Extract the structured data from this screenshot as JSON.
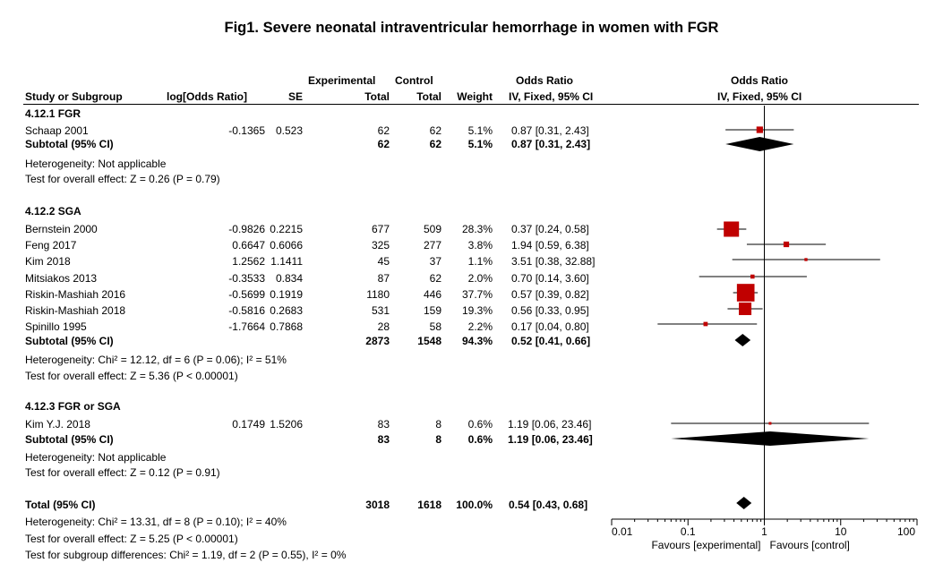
{
  "title": "Fig1. Severe neonatal intraventricular hemorrhage in women with FGR",
  "header": {
    "col_study": "Study or Subgroup",
    "col_log": "log[Odds Ratio]",
    "col_se": "SE",
    "col_exp_top": "Experimental",
    "col_exp": "Total",
    "col_ctrl_top": "Control",
    "col_ctrl": "Total",
    "col_weight": "Weight",
    "col_or_top": "Odds Ratio",
    "col_or": "IV, Fixed, 95% CI",
    "plot_top": "Odds Ratio",
    "plot_sub": "IV, Fixed, 95% CI"
  },
  "groups": [
    {
      "name": "4.12.1 FGR",
      "studies": [
        {
          "study": "Schaap 2001",
          "log_or": "-0.1365",
          "se": "0.523",
          "exp": "62",
          "ctrl": "62",
          "weight": "5.1%",
          "ci_text": "0.87 [0.31, 2.43]"
        }
      ],
      "subtotal": {
        "label": "Subtotal (95% CI)",
        "exp": "62",
        "ctrl": "62",
        "weight": "5.1%",
        "ci_text": "0.87 [0.31, 2.43]"
      },
      "heterogeneity": "Heterogeneity: Not applicable",
      "overall": "Test for overall effect: Z = 0.26 (P = 0.79)"
    },
    {
      "name": "4.12.2 SGA",
      "studies": [
        {
          "study": "Bernstein 2000",
          "log_or": "-0.9826",
          "se": "0.2215",
          "exp": "677",
          "ctrl": "509",
          "weight": "28.3%",
          "ci_text": "0.37 [0.24, 0.58]"
        },
        {
          "study": "Feng 2017",
          "log_or": "0.6647",
          "se": "0.6066",
          "exp": "325",
          "ctrl": "277",
          "weight": "3.8%",
          "ci_text": "1.94 [0.59, 6.38]"
        },
        {
          "study": "Kim 2018",
          "log_or": "1.2562",
          "se": "1.1411",
          "exp": "45",
          "ctrl": "37",
          "weight": "1.1%",
          "ci_text": "3.51 [0.38, 32.88]"
        },
        {
          "study": "Mitsiakos 2013",
          "log_or": "-0.3533",
          "se": "0.834",
          "exp": "87",
          "ctrl": "62",
          "weight": "2.0%",
          "ci_text": "0.70 [0.14, 3.60]"
        },
        {
          "study": "Riskin-Mashiah 2016",
          "log_or": "-0.5699",
          "se": "0.1919",
          "exp": "1180",
          "ctrl": "446",
          "weight": "37.7%",
          "ci_text": "0.57 [0.39, 0.82]"
        },
        {
          "study": "Riskin-Mashiah 2018",
          "log_or": "-0.5816",
          "se": "0.2683",
          "exp": "531",
          "ctrl": "159",
          "weight": "19.3%",
          "ci_text": "0.56 [0.33, 0.95]"
        },
        {
          "study": "Spinillo 1995",
          "log_or": "-1.7664",
          "se": "0.7868",
          "exp": "28",
          "ctrl": "58",
          "weight": "2.2%",
          "ci_text": "0.17 [0.04, 0.80]"
        }
      ],
      "subtotal": {
        "label": "Subtotal (95% CI)",
        "exp": "2873",
        "ctrl": "1548",
        "weight": "94.3%",
        "ci_text": "0.52 [0.41, 0.66]"
      },
      "heterogeneity": "Heterogeneity: Chi² = 12.12, df = 6 (P = 0.06); I² = 51%",
      "overall": "Test for overall effect: Z = 5.36 (P < 0.00001)"
    },
    {
      "name": "4.12.3 FGR or SGA",
      "studies": [
        {
          "study": "Kim Y.J. 2018",
          "log_or": "0.1749",
          "se": "1.5206",
          "exp": "83",
          "ctrl": "8",
          "weight": "0.6%",
          "ci_text": "1.19 [0.06, 23.46]"
        }
      ],
      "subtotal": {
        "label": "Subtotal (95% CI)",
        "exp": "83",
        "ctrl": "8",
        "weight": "0.6%",
        "ci_text": "1.19 [0.06, 23.46]"
      },
      "heterogeneity": "Heterogeneity: Not applicable",
      "overall": "Test for overall effect: Z = 0.12 (P = 0.91)"
    }
  ],
  "total": {
    "label": "Total (95% CI)",
    "exp": "3018",
    "ctrl": "1618",
    "weight": "100.0%",
    "ci_text": "0.54 [0.43, 0.68]",
    "heterogeneity": "Heterogeneity: Chi² = 13.31, df = 8 (P = 0.10); I² = 40%",
    "overall": "Test for overall effect: Z = 5.25 (P < 0.00001)",
    "subgroup": "Test for subgroup differences: Chi² = 1.19, df = 2 (P = 0.55), I² = 0%"
  },
  "axis_labels": {
    "favours_left": "Favours [experimental]",
    "favours_right": "Favours [control]"
  },
  "colors": {
    "square": "#c00000",
    "diamond": "#000000",
    "line": "#000000"
  },
  "chart_data": {
    "type": "forest",
    "scale": "log",
    "xlim": [
      0.01,
      100
    ],
    "ticks": [
      0.01,
      0.1,
      1,
      10,
      100
    ],
    "tick_labels": [
      "0.01",
      "0.1",
      "1",
      "10",
      "100"
    ],
    "null_line": 1,
    "studies": [
      {
        "name": "Schaap 2001",
        "or": 0.87,
        "lo": 0.31,
        "hi": 2.43,
        "weight": 5.1
      },
      {
        "name": "Bernstein 2000",
        "or": 0.37,
        "lo": 0.24,
        "hi": 0.58,
        "weight": 28.3
      },
      {
        "name": "Feng 2017",
        "or": 1.94,
        "lo": 0.59,
        "hi": 6.38,
        "weight": 3.8
      },
      {
        "name": "Kim 2018",
        "or": 3.51,
        "lo": 0.38,
        "hi": 32.88,
        "weight": 1.1
      },
      {
        "name": "Mitsiakos 2013",
        "or": 0.7,
        "lo": 0.14,
        "hi": 3.6,
        "weight": 2.0
      },
      {
        "name": "Riskin-Mashiah 2016",
        "or": 0.57,
        "lo": 0.39,
        "hi": 0.82,
        "weight": 37.7
      },
      {
        "name": "Riskin-Mashiah 2018",
        "or": 0.56,
        "lo": 0.33,
        "hi": 0.95,
        "weight": 19.3
      },
      {
        "name": "Spinillo 1995",
        "or": 0.17,
        "lo": 0.04,
        "hi": 0.8,
        "weight": 2.2
      },
      {
        "name": "Kim Y.J. 2018",
        "or": 1.19,
        "lo": 0.06,
        "hi": 23.46,
        "weight": 0.6
      }
    ],
    "summaries": [
      {
        "name": "4.12.1 FGR subtotal",
        "or": 0.87,
        "lo": 0.31,
        "hi": 2.43
      },
      {
        "name": "4.12.2 SGA subtotal",
        "or": 0.52,
        "lo": 0.41,
        "hi": 0.66
      },
      {
        "name": "4.12.3 FGR or SGA subtotal",
        "or": 1.19,
        "lo": 0.06,
        "hi": 23.46
      },
      {
        "name": "Total",
        "or": 0.54,
        "lo": 0.43,
        "hi": 0.68
      }
    ]
  }
}
